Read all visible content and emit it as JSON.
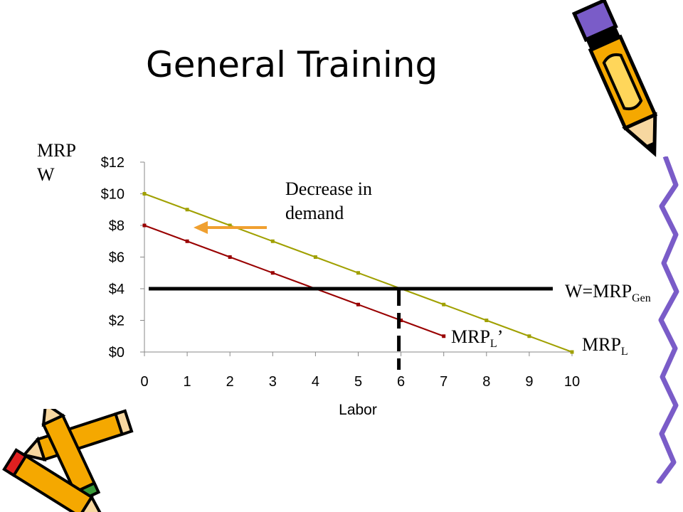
{
  "slide": {
    "title": "General Training"
  },
  "chart_data": {
    "type": "line",
    "xlabel": "Labor",
    "ylabel_lines": [
      "MRP",
      "W"
    ],
    "x": [
      0,
      1,
      2,
      3,
      4,
      5,
      6,
      7,
      8,
      9,
      10
    ],
    "x_ticks": [
      "0",
      "1",
      "2",
      "3",
      "4",
      "5",
      "6",
      "7",
      "8",
      "9",
      "10"
    ],
    "y_ticks": [
      "$0",
      "$2",
      "$4",
      "$6",
      "$8",
      "$10",
      "$12"
    ],
    "y_tick_values": [
      0,
      2,
      4,
      6,
      8,
      10,
      12
    ],
    "xlim": [
      0,
      10
    ],
    "ylim": [
      0,
      12
    ],
    "grid": false,
    "series": [
      {
        "name": "MRPL",
        "label_main": "MRP",
        "label_sub": "L",
        "label_suffix": "",
        "color": "#a0a000",
        "points": [
          [
            0,
            10
          ],
          [
            1,
            9
          ],
          [
            2,
            8
          ],
          [
            3,
            7
          ],
          [
            4,
            6
          ],
          [
            5,
            5
          ],
          [
            6,
            4
          ],
          [
            7,
            3
          ],
          [
            8,
            2
          ],
          [
            9,
            1
          ],
          [
            10,
            0
          ]
        ]
      },
      {
        "name": "MRPL'",
        "label_main": "MRP",
        "label_sub": "L",
        "label_suffix": "’",
        "color": "#990000",
        "points": [
          [
            0,
            8
          ],
          [
            1,
            7
          ],
          [
            2,
            6
          ],
          [
            3,
            5
          ],
          [
            4,
            4
          ],
          [
            5,
            3
          ],
          [
            6,
            2
          ],
          [
            7,
            1
          ]
        ]
      }
    ],
    "wage_line": {
      "label_main": "W=MRP",
      "label_sub": "Gen",
      "y": 4,
      "x_from": 0.1,
      "x_to": 9.55,
      "color": "#000000"
    },
    "equilibrium_marker": {
      "x": 6,
      "style": "dashed",
      "color": "#000000"
    },
    "annotation": {
      "text": "Decrease in demand",
      "arrow_color": "#f0a030",
      "arrow_direction": "left"
    }
  }
}
